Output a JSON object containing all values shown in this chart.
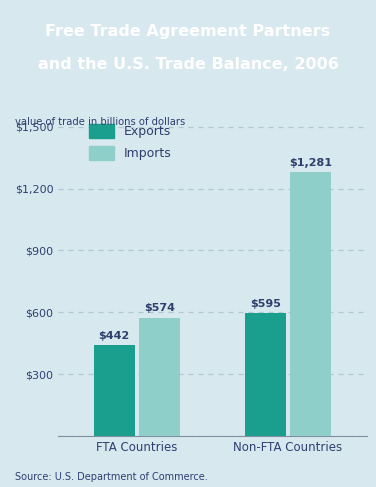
{
  "title_line1": "Free Trade Agreement Partners",
  "title_line2": "and the U.S. Trade Balance, 2006",
  "title_bg_color": "#283e6b",
  "title_text_color": "#ffffff",
  "subtitle": "value of trade in billions of dollars",
  "subtitle_color": "#2d4070",
  "background_color": "#d8e8ef",
  "plot_bg_color": "#d8e8ef",
  "categories": [
    "FTA Countries",
    "Non-FTA Countries"
  ],
  "exports": [
    442,
    595
  ],
  "imports": [
    574,
    1281
  ],
  "export_color": "#1a9e8e",
  "import_color": "#8ecfca",
  "label_color": "#2d3f6b",
  "yticks": [
    0,
    300,
    600,
    900,
    1200,
    1500
  ],
  "ytick_labels": [
    "",
    "$300",
    "$600",
    "$900",
    "$1,200",
    "$1,500"
  ],
  "ylim": [
    0,
    1560
  ],
  "grid_color": "#b0c8d0",
  "legend_labels": [
    "Exports",
    "Imports"
  ],
  "source_text": "Source: U.S. Department of Commerce.",
  "source_color": "#2d4070",
  "tick_color": "#2d4070"
}
